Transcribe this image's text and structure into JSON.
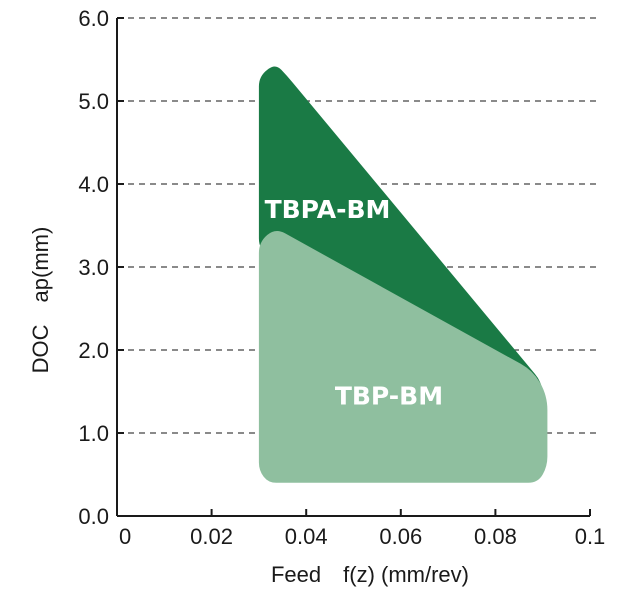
{
  "chart_data": {
    "type": "area",
    "xlabel": "Feed　f(z) (mm/rev)",
    "ylabel": "DOC　ap(mm)",
    "xlim": [
      0,
      0.1
    ],
    "ylim": [
      0,
      6.0
    ],
    "x_ticks": [
      "0",
      "0.02",
      "0.04",
      "0.06",
      "0.08",
      "0.1"
    ],
    "y_ticks": [
      "0.0",
      "1.0",
      "2.0",
      "3.0",
      "4.0",
      "5.0",
      "6.0"
    ],
    "grid": "horizontal-dashed",
    "series": [
      {
        "name": "TBPA-BM",
        "color": "#1a7a45",
        "points": [
          [
            0.03,
            3.2
          ],
          [
            0.03,
            5.3
          ],
          [
            0.0335,
            5.45
          ],
          [
            0.036,
            5.3
          ],
          [
            0.09,
            1.6
          ],
          [
            0.09,
            1.2
          ]
        ]
      },
      {
        "name": "TBP-BM",
        "color": "#8fbf9f",
        "points": [
          [
            0.03,
            0.55
          ],
          [
            0.03,
            3.3
          ],
          [
            0.0335,
            3.47
          ],
          [
            0.088,
            1.75
          ],
          [
            0.091,
            1.45
          ],
          [
            0.091,
            0.6
          ],
          [
            0.089,
            0.4
          ],
          [
            0.032,
            0.4
          ]
        ]
      }
    ],
    "labels": [
      {
        "text": "TBPA-BM",
        "x": 0.0445,
        "y": 3.7
      },
      {
        "text": "TBP-BM",
        "x": 0.0575,
        "y": 1.45
      }
    ]
  }
}
